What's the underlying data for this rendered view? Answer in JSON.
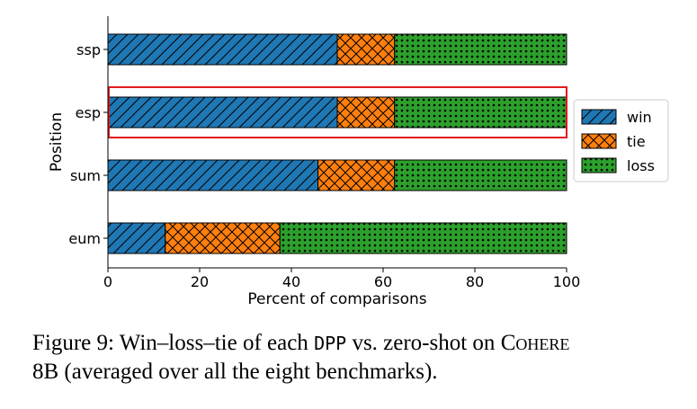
{
  "chart_data": {
    "type": "bar",
    "orientation": "horizontal",
    "stacked": true,
    "categories": [
      "ssp",
      "esp",
      "sum",
      "eum"
    ],
    "series": [
      {
        "name": "win",
        "values": [
          50.0,
          50.0,
          45.8,
          12.5
        ],
        "color": "#1f77b4",
        "hatch": "diagonal"
      },
      {
        "name": "tie",
        "values": [
          12.5,
          12.5,
          16.7,
          25.0
        ],
        "color": "#ff7f0e",
        "hatch": "cross"
      },
      {
        "name": "loss",
        "values": [
          37.5,
          37.5,
          37.5,
          62.5
        ],
        "color": "#2ca02c",
        "hatch": "dots"
      }
    ],
    "xlabel": "Percent of comparisons",
    "ylabel": "Position",
    "xlim": [
      0,
      100
    ],
    "xticks": [
      "0",
      "20",
      "40",
      "60",
      "80",
      "100"
    ],
    "grid": false,
    "legend_position": "right",
    "highlight": {
      "category": "esp",
      "color": "#e31a1c"
    }
  },
  "caption": {
    "prefix": "Figure 9: Win–loss–tie of each ",
    "mono": "DPP",
    "middle": " vs. zero-shot on ",
    "smallcaps": "Cohere",
    "line2": "8B (averaged over all the eight benchmarks)."
  }
}
